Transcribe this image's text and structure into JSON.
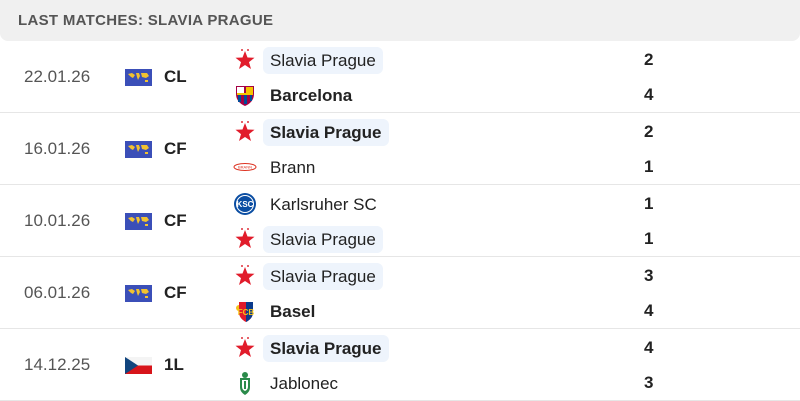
{
  "header": {
    "title": "LAST MATCHES: SLAVIA PRAGUE"
  },
  "matches": [
    {
      "date": "22.01.26",
      "competition": "CL",
      "flag": "world-icon",
      "home": {
        "name": "Slavia Prague",
        "icon": "slavia-star-icon",
        "score": "2",
        "winner": false,
        "highlight": true
      },
      "away": {
        "name": "Barcelona",
        "icon": "barcelona-crest-icon",
        "score": "4",
        "winner": true,
        "highlight": false
      }
    },
    {
      "date": "16.01.26",
      "competition": "CF",
      "flag": "world-icon",
      "home": {
        "name": "Slavia Prague",
        "icon": "slavia-star-icon",
        "score": "2",
        "winner": true,
        "highlight": true
      },
      "away": {
        "name": "Brann",
        "icon": "brann-crest-icon",
        "score": "1",
        "winner": false,
        "highlight": false
      }
    },
    {
      "date": "10.01.26",
      "competition": "CF",
      "flag": "world-icon",
      "home": {
        "name": "Karlsruher SC",
        "icon": "ksc-crest-icon",
        "score": "1",
        "winner": false,
        "highlight": false
      },
      "away": {
        "name": "Slavia Prague",
        "icon": "slavia-star-icon",
        "score": "1",
        "winner": false,
        "highlight": true
      }
    },
    {
      "date": "06.01.26",
      "competition": "CF",
      "flag": "world-icon",
      "home": {
        "name": "Slavia Prague",
        "icon": "slavia-star-icon",
        "score": "3",
        "winner": false,
        "highlight": true
      },
      "away": {
        "name": "Basel",
        "icon": "basel-crest-icon",
        "score": "4",
        "winner": true,
        "highlight": false
      }
    },
    {
      "date": "14.12.25",
      "competition": "1L",
      "flag": "czech-flag-icon",
      "home": {
        "name": "Slavia Prague",
        "icon": "slavia-star-icon",
        "score": "4",
        "winner": true,
        "highlight": true
      },
      "away": {
        "name": "Jablonec",
        "icon": "jablonec-crest-icon",
        "score": "3",
        "winner": false,
        "highlight": false
      }
    }
  ]
}
